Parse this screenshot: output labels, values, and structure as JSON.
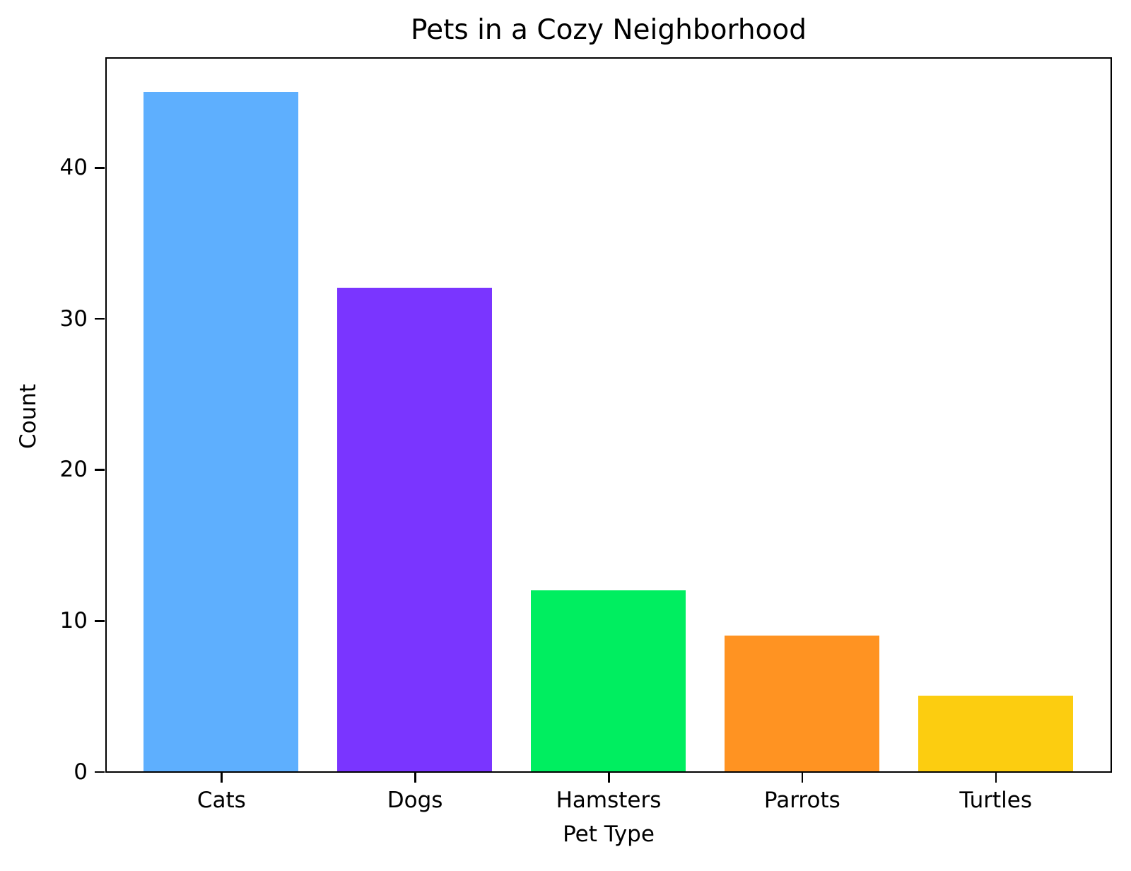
{
  "chart_data": {
    "type": "bar",
    "title": "Pets in a Cozy Neighborhood",
    "xlabel": "Pet Type",
    "ylabel": "Count",
    "categories": [
      "Cats",
      "Dogs",
      "Hamsters",
      "Parrots",
      "Turtles"
    ],
    "values": [
      45,
      32,
      12,
      9,
      5
    ],
    "colors": [
      "#5EAFFE",
      "#7A35FF",
      "#00EE60",
      "#FF9322",
      "#FCCD10"
    ],
    "ylim": [
      0,
      47.25
    ],
    "yticks": [
      0,
      10,
      20,
      30,
      40
    ],
    "grid": false,
    "legend": null
  }
}
